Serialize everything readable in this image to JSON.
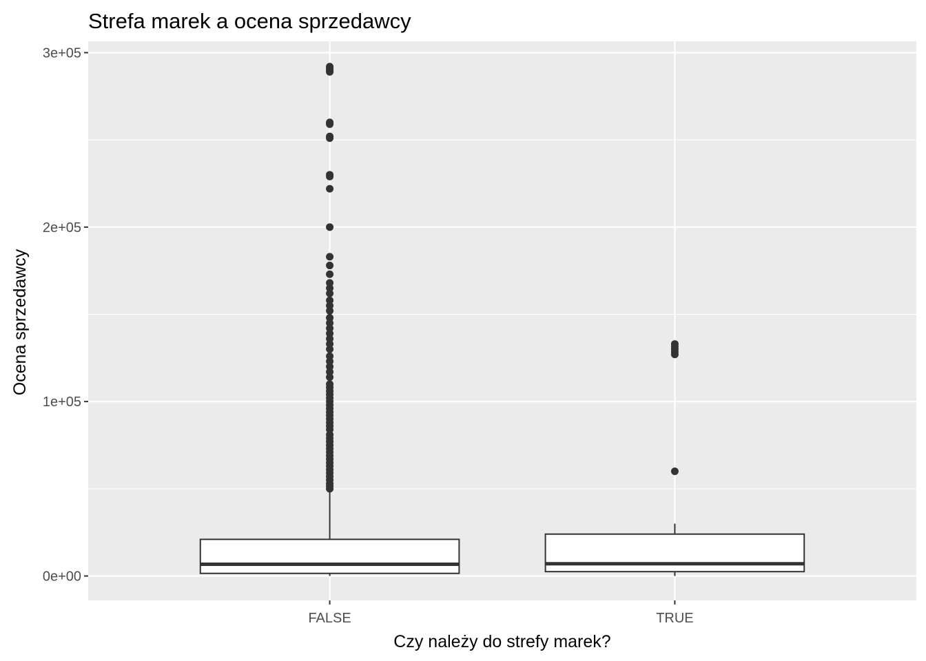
{
  "chart_data": {
    "type": "boxplot",
    "title": "Strefa marek a ocena sprzedawcy",
    "xlabel": "Czy należy do strefy marek?",
    "ylabel": "Ocena sprzedawcy",
    "categories": [
      "FALSE",
      "TRUE"
    ],
    "ylim": [
      -14000,
      306500
    ],
    "y_ticks": [
      0,
      100000,
      200000,
      300000
    ],
    "y_tick_labels": [
      "0e+00",
      "1e+05",
      "2e+05",
      "3e+05"
    ],
    "grid": true,
    "boxes": [
      {
        "category": "FALSE",
        "whisker_low": 0,
        "q1": 1500,
        "median": 6700,
        "q3": 21000,
        "whisker_high": 49000,
        "outliers": [
          50000,
          51500,
          53000,
          55000,
          57000,
          59000,
          61000,
          63000,
          65000,
          67000,
          69000,
          71000,
          73000,
          75000,
          77000,
          79000,
          81000,
          84000,
          86000,
          88000,
          90000,
          92000,
          94000,
          96000,
          98000,
          100000,
          102000,
          104000,
          106000,
          108000,
          110000,
          114000,
          117000,
          120000,
          123000,
          126000,
          130000,
          133000,
          136000,
          139000,
          142000,
          145000,
          148000,
          152000,
          155000,
          158000,
          162000,
          165000,
          168000,
          173000,
          178000,
          183000,
          200000,
          222000,
          229000,
          230000,
          251000,
          252000,
          259000,
          260000,
          289000,
          290000,
          291000,
          292000
        ]
      },
      {
        "category": "TRUE",
        "whisker_low": 0,
        "q1": 2500,
        "median": 7000,
        "q3": 24000,
        "whisker_high": 30000,
        "outliers": [
          60000,
          127000,
          128500,
          130000,
          131500,
          133000
        ]
      }
    ]
  }
}
